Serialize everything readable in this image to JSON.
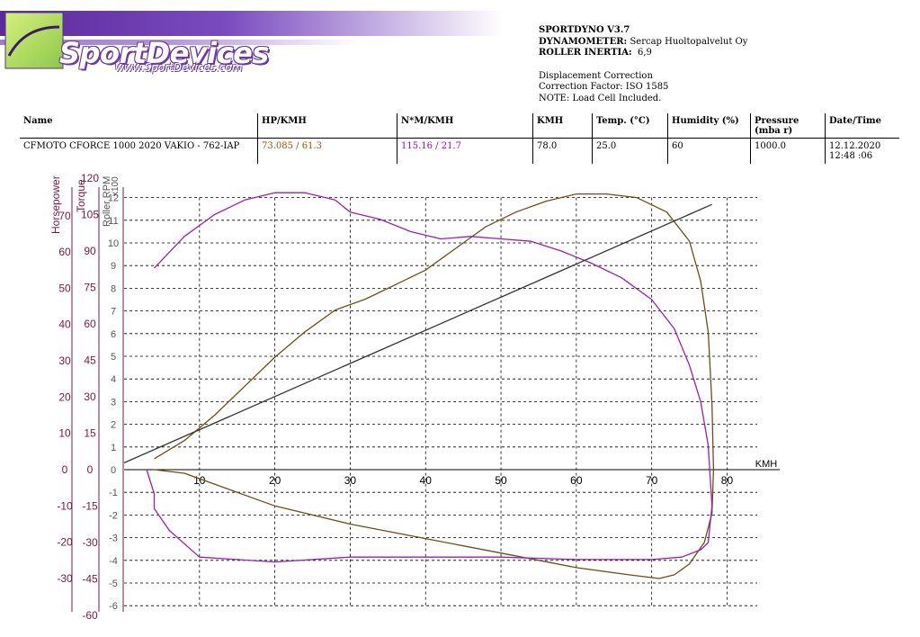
{
  "logo": {
    "name": "SportDevices",
    "url": "www.SportDevices.com"
  },
  "info": {
    "software": "SPORTDYNO V3.7",
    "dyno_label": "DYNAMOMETER:",
    "dyno_value": "Sercap Huoltopalvelut Oy",
    "inertia_label": "ROLLER INERTIA:",
    "inertia_value": "6,9",
    "line1": "Displacement Correction",
    "line2": "Correction Factor: ISO 1585",
    "line3": "NOTE: Load Cell Included."
  },
  "table": {
    "headers": [
      "Name",
      "HP/KMH",
      "N*M/KMH",
      "KMH",
      "Temp. (°C)",
      "Humidity (%)",
      "Pressure (mba r)",
      "Date/Time"
    ],
    "row": {
      "name": "CFMOTO CFORCE 1000 2020 VAKIO - 762-IAP",
      "hp": "73.085 / 61.3",
      "nm": "115.16 / 21.7",
      "kmh": "78.0",
      "temp": "25.0",
      "humidity": "60",
      "pressure": "1000.0",
      "datetime": "12.12.2020 12:48 :06"
    }
  },
  "colors": {
    "hp": "#6b4e16",
    "torque": "#9b1fb0",
    "rpm": "#333333",
    "axis_label": "#7a1840"
  },
  "chart_data": {
    "type": "line",
    "xlabel": "KMH",
    "x_ticks": [
      10,
      20,
      30,
      40,
      50,
      60,
      70,
      80
    ],
    "axes": {
      "horsepower": {
        "label": "Horsepower",
        "ticks": [
          70,
          60,
          50,
          40,
          30,
          20,
          10,
          0,
          -10,
          -20,
          -30
        ],
        "range": [
          -40,
          80
        ]
      },
      "torque": {
        "label": "Torque",
        "ticks": [
          120,
          105,
          90,
          75,
          60,
          45,
          30,
          15,
          0,
          -15,
          -30,
          -45,
          -60
        ],
        "range": [
          -60,
          120
        ]
      },
      "roller_rpm": {
        "label": "Roller RPM",
        "unit": "x100",
        "ticks": [
          12,
          11,
          10,
          9,
          8,
          7,
          6,
          5,
          4,
          3,
          2,
          1,
          0,
          -1,
          -2,
          -3,
          -4,
          -5,
          -6
        ],
        "range": [
          -6,
          12
        ]
      }
    },
    "x_range": [
      0,
      84
    ],
    "grid": true,
    "series": [
      {
        "name": "HP",
        "axis": "horsepower",
        "color": "#6b4e16",
        "points": [
          [
            4,
            3
          ],
          [
            8,
            8
          ],
          [
            12,
            15
          ],
          [
            16,
            23
          ],
          [
            20,
            31
          ],
          [
            24,
            38
          ],
          [
            28,
            44
          ],
          [
            32,
            47
          ],
          [
            36,
            51
          ],
          [
            40,
            55
          ],
          [
            44,
            61
          ],
          [
            48,
            67
          ],
          [
            52,
            71
          ],
          [
            56,
            74
          ],
          [
            60,
            76
          ],
          [
            64,
            76
          ],
          [
            68,
            75
          ],
          [
            72,
            71
          ],
          [
            75,
            63
          ],
          [
            76.5,
            52
          ],
          [
            77.5,
            38
          ],
          [
            78,
            18
          ],
          [
            78.2,
            0
          ],
          [
            78,
            -12
          ],
          [
            77,
            -20
          ],
          [
            75,
            -26
          ],
          [
            73,
            -29
          ],
          [
            71,
            -30
          ],
          [
            67,
            -29
          ],
          [
            60,
            -27
          ],
          [
            50,
            -23
          ],
          [
            40,
            -19
          ],
          [
            30,
            -15
          ],
          [
            20,
            -10
          ],
          [
            12,
            -4
          ],
          [
            8,
            -1
          ],
          [
            4,
            0
          ]
        ]
      },
      {
        "name": "Torque",
        "axis": "torque",
        "color": "#9b1fb0",
        "points": [
          [
            4,
            83
          ],
          [
            8,
            96
          ],
          [
            12,
            105
          ],
          [
            16,
            111
          ],
          [
            20,
            114
          ],
          [
            24,
            114
          ],
          [
            28,
            111
          ],
          [
            30,
            106
          ],
          [
            34,
            103
          ],
          [
            38,
            98
          ],
          [
            42,
            95
          ],
          [
            46,
            96
          ],
          [
            50,
            95
          ],
          [
            54,
            94
          ],
          [
            58,
            90
          ],
          [
            62,
            85
          ],
          [
            66,
            79
          ],
          [
            70,
            70
          ],
          [
            73,
            58
          ],
          [
            75,
            43
          ],
          [
            76.5,
            28
          ],
          [
            77.5,
            10
          ],
          [
            78,
            -15
          ],
          [
            77.5,
            -30
          ],
          [
            76.5,
            -33
          ],
          [
            74,
            -36
          ],
          [
            70,
            -37
          ],
          [
            60,
            -37
          ],
          [
            50,
            -36
          ],
          [
            40,
            -36
          ],
          [
            30,
            -36
          ],
          [
            20,
            -38
          ],
          [
            10,
            -36
          ],
          [
            6,
            -25
          ],
          [
            4,
            -16
          ],
          [
            4,
            -10
          ],
          [
            3,
            0
          ]
        ]
      },
      {
        "name": "Roller RPM",
        "axis": "roller_rpm",
        "color": "#333333",
        "points": [
          [
            0,
            0.3
          ],
          [
            78,
            11.7
          ]
        ]
      }
    ]
  }
}
